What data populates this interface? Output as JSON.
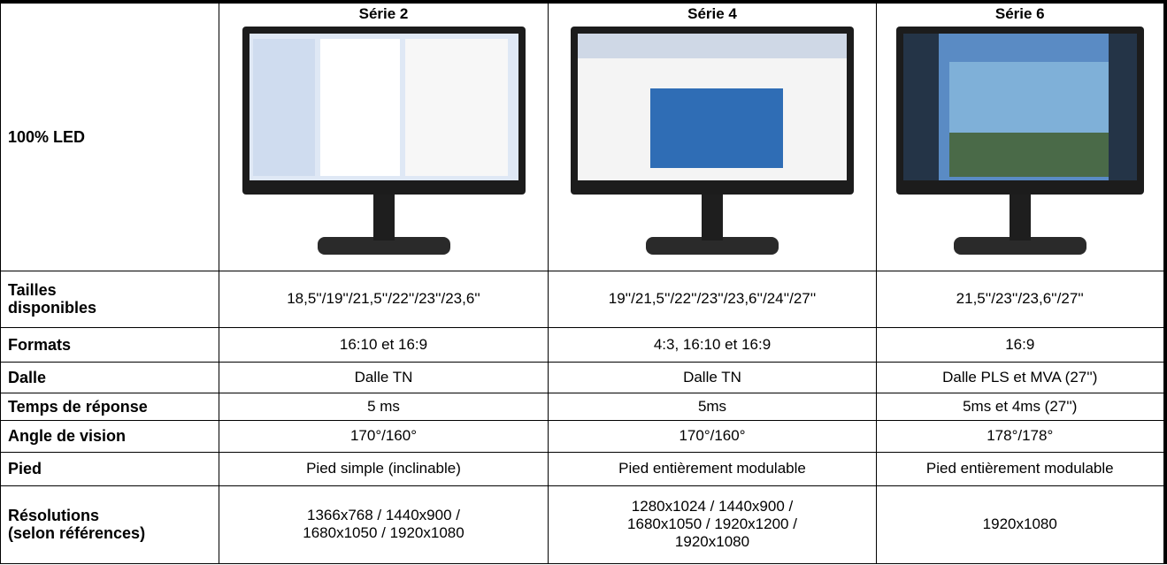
{
  "header": {
    "columns": [
      "Série 2",
      "Série 4",
      "Série 6"
    ]
  },
  "table": {
    "rows": [
      {
        "label": [
          "100% LED"
        ],
        "cells": []
      },
      {
        "label": [
          "Tailles",
          "disponibles"
        ],
        "cells": [
          [
            "18,5''/19''/21,5''/22''/23''/23,6''"
          ],
          [
            "19''/21,5''/22''/23''/23,6''/24''/27''"
          ],
          [
            "21,5''/23''/23,6''/27''"
          ]
        ]
      },
      {
        "label": [
          "Formats"
        ],
        "cells": [
          [
            "16:10 et 16:9"
          ],
          [
            "4:3, 16:10 et 16:9"
          ],
          [
            "16:9"
          ]
        ]
      },
      {
        "label": [
          "Dalle"
        ],
        "cells": [
          [
            "Dalle TN"
          ],
          [
            "Dalle TN"
          ],
          [
            "Dalle PLS et MVA (27'')"
          ]
        ]
      },
      {
        "label": [
          "Temps de réponse"
        ],
        "cells": [
          [
            "5 ms"
          ],
          [
            "5ms"
          ],
          [
            "5ms et 4ms (27'')"
          ]
        ]
      },
      {
        "label": [
          "Angle de vision"
        ],
        "cells": [
          [
            "170°/160°"
          ],
          [
            "170°/160°"
          ],
          [
            "178°/178°"
          ]
        ]
      },
      {
        "label": [
          "Pied"
        ],
        "cells": [
          [
            "Pied simple (inclinable)"
          ],
          [
            "Pied entièrement modulable"
          ],
          [
            "Pied entièrement modulable"
          ]
        ]
      },
      {
        "label": [
          "Résolutions",
          "(selon références)"
        ],
        "cells": [
          [
            "1366x768 / 1440x900 /",
            "1680x1050 / 1920x1080"
          ],
          [
            "1280x1024 / 1440x900 /",
            "1680x1050 / 1920x1200 /",
            "1920x1080"
          ],
          [
            "1920x1080"
          ]
        ]
      }
    ]
  }
}
